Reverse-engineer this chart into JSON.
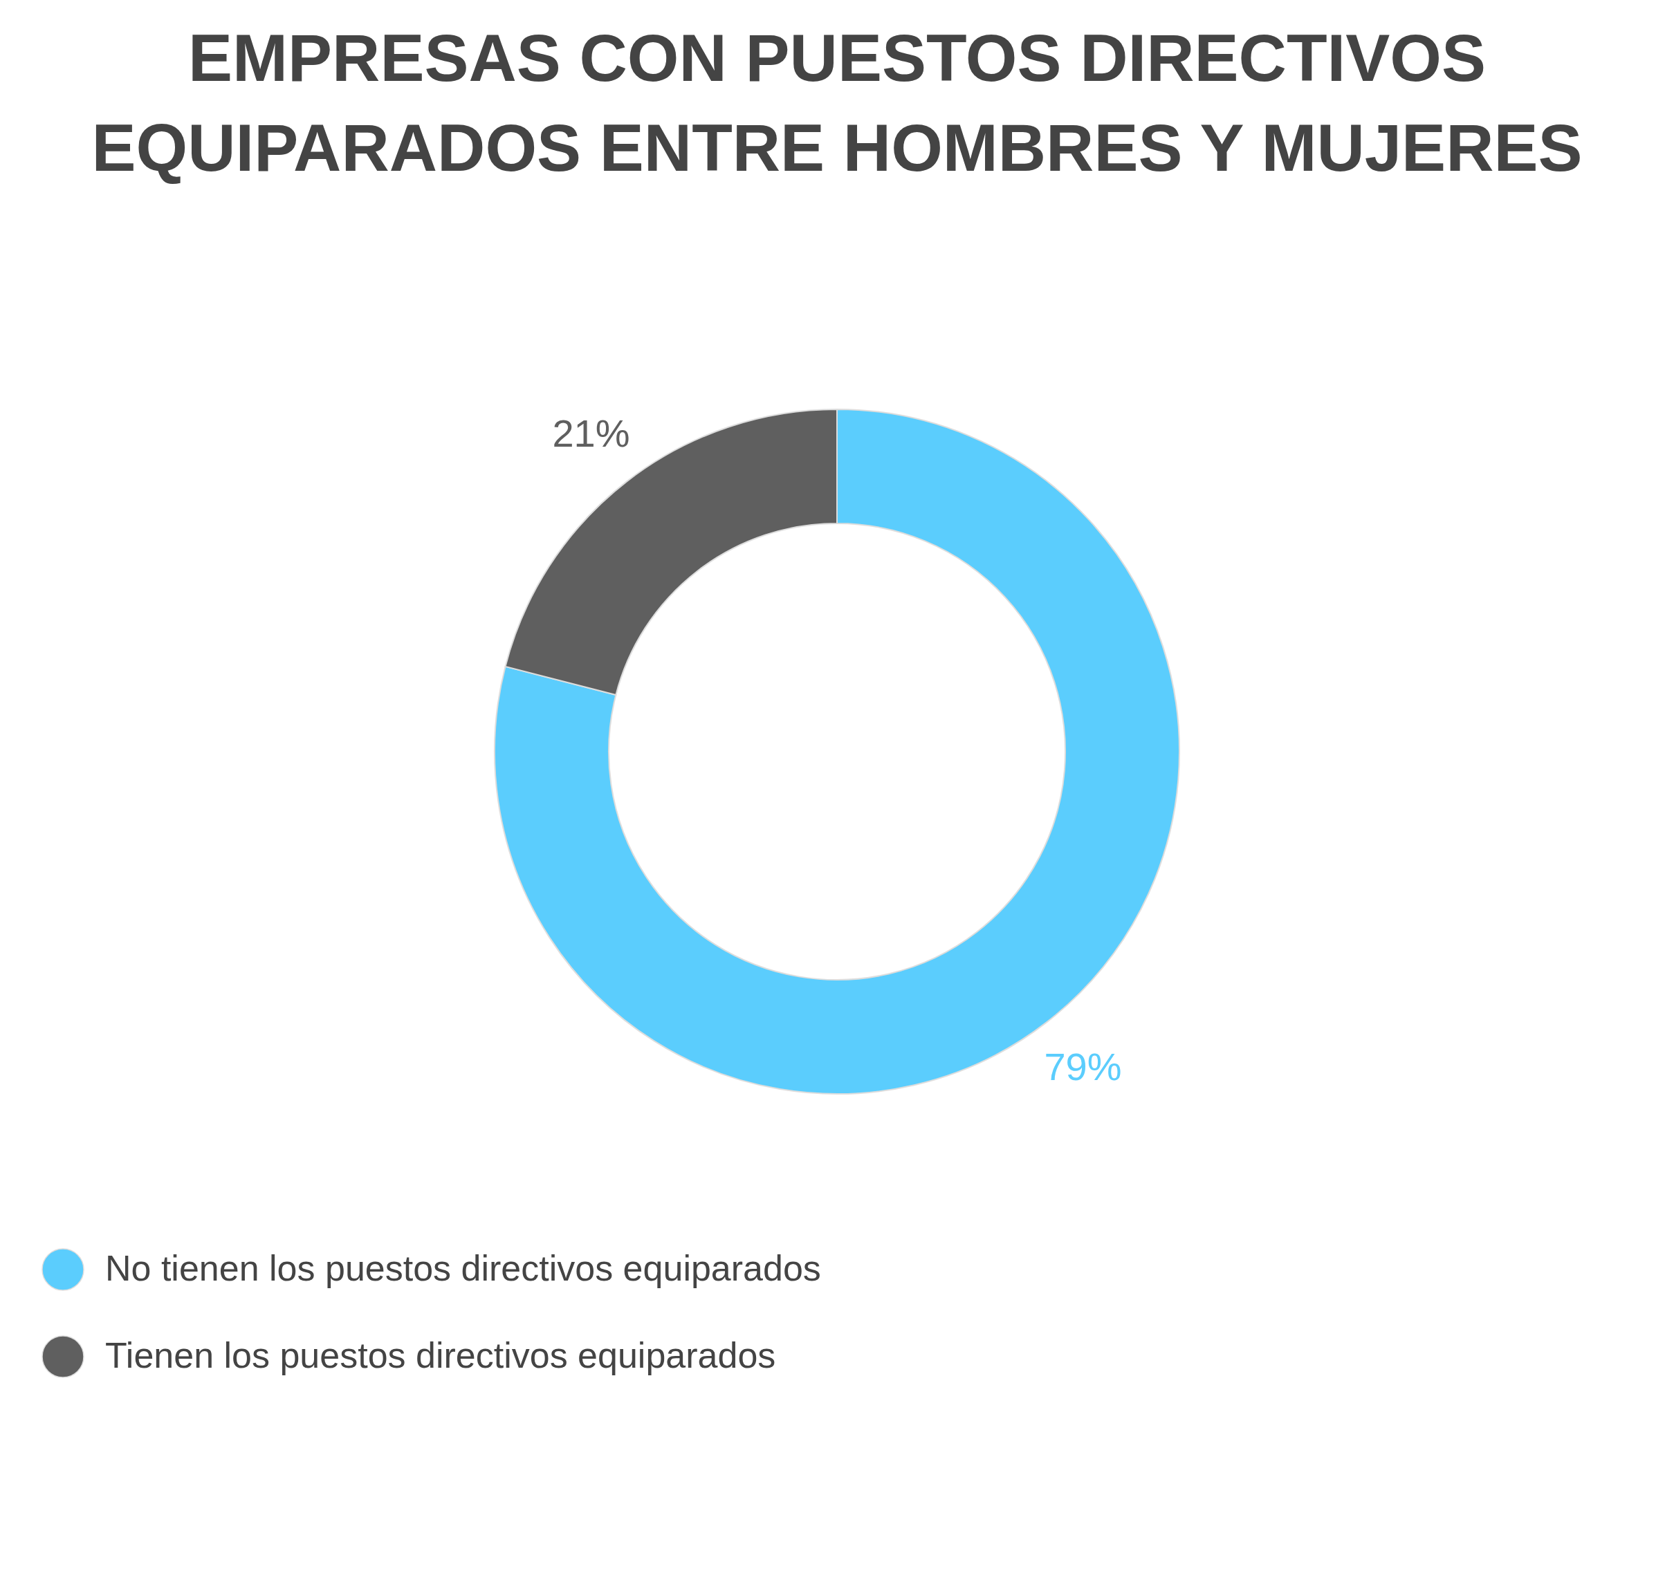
{
  "chart_data": {
    "type": "donut",
    "title": "EMPRESAS CON PUESTOS DIRECTIVOS\nEQUIPARADOS ENTRE HOMBRES Y MUJERES",
    "categories": [
      "No tienen los puestos directivos equiparados",
      "Tienen los puestos directivos equiparados"
    ],
    "values": [
      79,
      21
    ],
    "colors": [
      "#5bcdfd",
      "#5f5f5f"
    ],
    "value_labels": [
      "79%",
      "21%"
    ],
    "legend": "bottom"
  }
}
